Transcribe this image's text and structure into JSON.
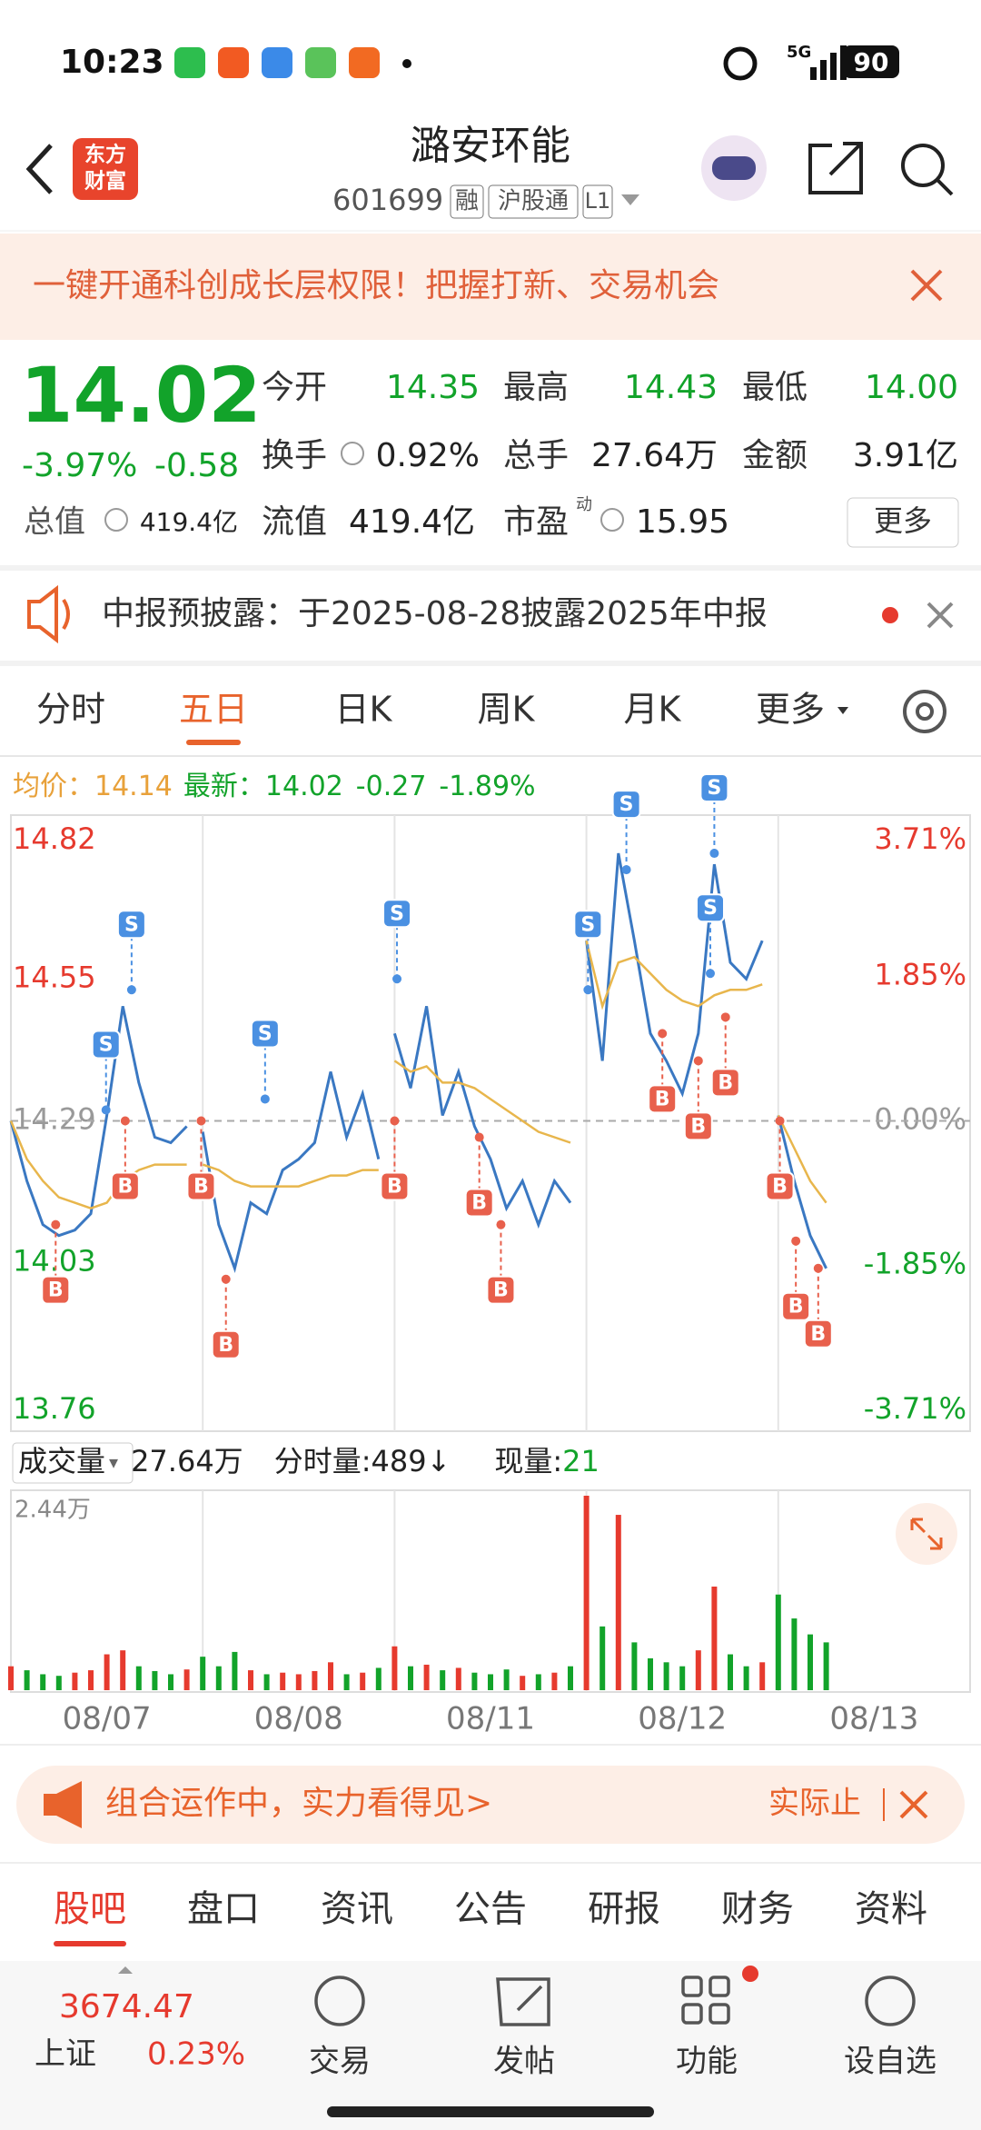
{
  "status_bar": {
    "time": "10:23",
    "network": "5G",
    "battery": "90"
  },
  "header": {
    "logo": [
      "东方",
      "财富"
    ],
    "title": "潞安环能",
    "code": "601699",
    "badges": [
      "融",
      "沪股通",
      "L1"
    ]
  },
  "banner": {
    "text": "一键开通科创成长层权限！把握打新、交易机会"
  },
  "quote": {
    "price": "14.02",
    "change_pct": "-3.97%",
    "change": "-0.58",
    "open_label": "今开",
    "open": "14.35",
    "high_label": "最高",
    "high": "14.43",
    "low_label": "最低",
    "low": "14.00",
    "turnover_label": "换手",
    "turnover": "0.92%",
    "volume_label": "总手",
    "volume": "27.64万",
    "amount_label": "金额",
    "amount": "3.91亿",
    "cap_label": "总值",
    "cap": "419.4亿",
    "float_label": "流值",
    "float": "419.4亿",
    "pe_label": "市盈",
    "pe_sup": "动",
    "pe": "15.95",
    "more": "更多"
  },
  "notice": {
    "text": "中报预披露：于2025-08-28披露2025年中报"
  },
  "tabs": {
    "items": [
      "分时",
      "五日",
      "日K",
      "周K",
      "月K",
      "更多"
    ],
    "selected": 1
  },
  "info": {
    "avg_label": "均价：",
    "avg": "14.14",
    "latest_label": "最新：",
    "latest": "14.02",
    "change": "-0.27",
    "change_pct": "-1.89%"
  },
  "chart_data": {
    "type": "line",
    "dates": [
      "08/07",
      "08/08",
      "08/11",
      "08/12",
      "08/13"
    ],
    "xlim": [
      0,
      1200
    ],
    "ylim": [
      13.76,
      14.82
    ],
    "yticks": [
      14.82,
      14.55,
      14.29,
      14.03,
      13.76
    ],
    "y2lim": [
      -3.71,
      3.71
    ],
    "y2ticks": [
      {
        "value": 3.71,
        "label": "3.71%"
      },
      {
        "value": 1.85,
        "label": "1.85%"
      },
      {
        "value": 0,
        "label": "0.00%"
      },
      {
        "value": -1.85,
        "label": "-1.85%"
      },
      {
        "value": -3.71,
        "label": "-3.71%"
      }
    ],
    "x": [
      0,
      20,
      40,
      60,
      80,
      100,
      120,
      140,
      160,
      180,
      200,
      220,
      240,
      260,
      280,
      300,
      320,
      340,
      360,
      380,
      400,
      420,
      440,
      460,
      480,
      500,
      520,
      540,
      560,
      580,
      600,
      620,
      640,
      660,
      680,
      700,
      720,
      740,
      760,
      780,
      800,
      820,
      840,
      860,
      880,
      900,
      920,
      940,
      960,
      980,
      1000,
      1020
    ],
    "series": [
      {
        "name": "价格",
        "color": "#3a78c2",
        "values": [
          14.29,
          14.18,
          14.1,
          14.08,
          14.09,
          14.12,
          14.3,
          14.5,
          14.36,
          14.26,
          14.25,
          14.28,
          14.27,
          14.1,
          14.02,
          14.14,
          14.12,
          14.2,
          14.22,
          14.25,
          14.38,
          14.26,
          14.34,
          14.22,
          14.45,
          14.35,
          14.5,
          14.3,
          14.38,
          14.28,
          14.22,
          14.13,
          14.18,
          14.1,
          14.18,
          14.14,
          14.62,
          14.4,
          14.78,
          14.62,
          14.45,
          14.4,
          14.34,
          14.45,
          14.76,
          14.58,
          14.55,
          14.62,
          14.3,
          14.18,
          14.08,
          14.02
        ]
      },
      {
        "name": "均价",
        "color": "#e8b64c",
        "values": [
          14.29,
          14.22,
          14.18,
          14.15,
          14.14,
          14.13,
          14.14,
          14.18,
          14.2,
          14.21,
          14.21,
          14.21,
          14.21,
          14.2,
          14.18,
          14.17,
          14.17,
          14.17,
          14.17,
          14.18,
          14.19,
          14.19,
          14.2,
          14.2,
          14.4,
          14.38,
          14.39,
          14.36,
          14.36,
          14.35,
          14.33,
          14.31,
          14.29,
          14.27,
          14.26,
          14.25,
          14.62,
          14.5,
          14.58,
          14.59,
          14.56,
          14.53,
          14.51,
          14.5,
          14.52,
          14.53,
          14.53,
          14.54,
          14.3,
          14.24,
          14.18,
          14.14
        ]
      }
    ],
    "up_color": "#e63a2e",
    "down_color": "#12a32a",
    "markers": [
      {
        "x": 119,
        "y": 14.31,
        "label": "S"
      },
      {
        "x": 151,
        "y": 14.53,
        "label": "S"
      },
      {
        "x": 318,
        "y": 14.33,
        "label": "S"
      },
      {
        "x": 483,
        "y": 14.55,
        "label": "S"
      },
      {
        "x": 722,
        "y": 14.53,
        "label": "S"
      },
      {
        "x": 770,
        "y": 14.75,
        "label": "S"
      },
      {
        "x": 875,
        "y": 14.56,
        "label": "S"
      },
      {
        "x": 880,
        "y": 14.78,
        "label": "S"
      },
      {
        "x": 56,
        "y": 14.1,
        "label": "B"
      },
      {
        "x": 143,
        "y": 14.29,
        "label": "B"
      },
      {
        "x": 238,
        "y": 14.29,
        "label": "B"
      },
      {
        "x": 269,
        "y": 14.0,
        "label": "B"
      },
      {
        "x": 480,
        "y": 14.29,
        "label": "B"
      },
      {
        "x": 586,
        "y": 14.26,
        "label": "B"
      },
      {
        "x": 613,
        "y": 14.1,
        "label": "B"
      },
      {
        "x": 815,
        "y": 14.45,
        "label": "B"
      },
      {
        "x": 860,
        "y": 14.4,
        "label": "B"
      },
      {
        "x": 894,
        "y": 14.48,
        "label": "B"
      },
      {
        "x": 962,
        "y": 14.29,
        "label": "B"
      },
      {
        "x": 982,
        "y": 14.07,
        "label": "B"
      },
      {
        "x": 1010,
        "y": 14.02,
        "label": "B"
      }
    ]
  },
  "volume": {
    "label": "成交量",
    "total": "27.64万",
    "tick_label": "分时量:489↓",
    "now_label": "现量:",
    "now": "21",
    "ylim": [
      0,
      24400
    ],
    "yticks": [
      {
        "value": 24400,
        "label": "2.44万"
      }
    ],
    "values": [
      3000,
      2500,
      2000,
      1800,
      2200,
      2500,
      4500,
      5000,
      3000,
      2400,
      2000,
      2600,
      4200,
      3000,
      4800,
      2500,
      2000,
      2200,
      2000,
      2400,
      3500,
      2000,
      2200,
      2800,
      5500,
      3000,
      3200,
      2500,
      2800,
      2200,
      2000,
      2600,
      1800,
      2000,
      2200,
      3000,
      24400,
      8000,
      22000,
      6000,
      4000,
      3500,
      3000,
      5000,
      13000,
      4500,
      3000,
      3500,
      12000,
      9000,
      7000,
      6000
    ]
  },
  "ad": {
    "text": "组合运作中，实力看得见>",
    "right": "实际止"
  },
  "bottom_tabs": {
    "items": [
      "股吧",
      "盘口",
      "资讯",
      "公告",
      "研报",
      "财务",
      "资料"
    ],
    "selected": 0
  },
  "bottom_bar": {
    "index_value": "3674.47",
    "index_name": "上证",
    "index_pct": "0.23%",
    "items": [
      "交易",
      "发帖",
      "功能",
      "设自选"
    ]
  }
}
